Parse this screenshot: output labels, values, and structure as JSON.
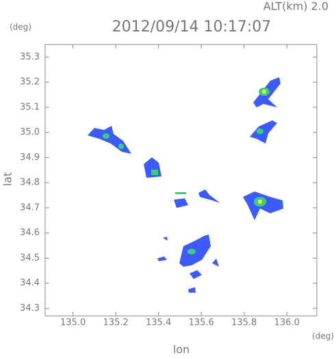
{
  "chart_data": {
    "type": "map",
    "title": "2012/09/14 10:17:07",
    "subtitle": "ALT(km) 2.0",
    "y_unit": "(deg)",
    "x_unit": "(deg)",
    "xlabel": "lon",
    "ylabel": "lat",
    "xlim": [
      134.87,
      136.14
    ],
    "ylim": [
      34.27,
      35.35
    ],
    "xticks": [
      {
        "value": 135,
        "label": "135.0"
      },
      135.2,
      135.4,
      135.6,
      135.8,
      {
        "value": 136,
        "label": "136.0"
      }
    ],
    "yticks": [
      34.3,
      34.4,
      34.5,
      34.6,
      34.7,
      34.8,
      34.9,
      {
        "value": 35,
        "label": "35.0"
      },
      35.1,
      35.2,
      35.3
    ]
  }
}
